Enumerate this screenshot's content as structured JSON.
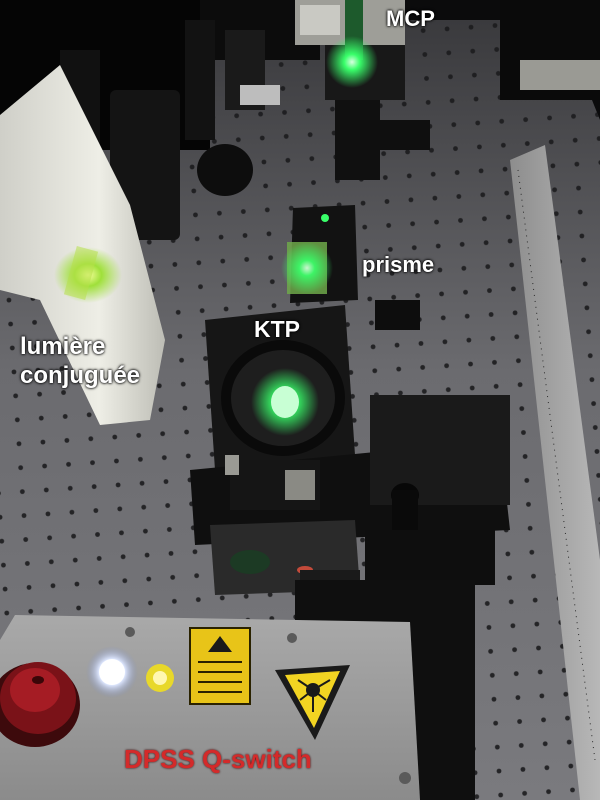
{
  "labels": {
    "mcp": "MCP",
    "prisme": "prisme",
    "ktp": "KTP",
    "lumiere_line1": "lumière",
    "lumiere_line2": "conjuguée",
    "dpss": "DPSS Q-switch"
  },
  "colors": {
    "label_text": "#ffffff",
    "dpss_text": "#d42a2a",
    "laser_green": "#39ff6a",
    "table_grey": "#5e5e62",
    "mount_black": "#141414"
  },
  "icons": [
    "laser-warning-icon",
    "warning-sticker-icon"
  ]
}
